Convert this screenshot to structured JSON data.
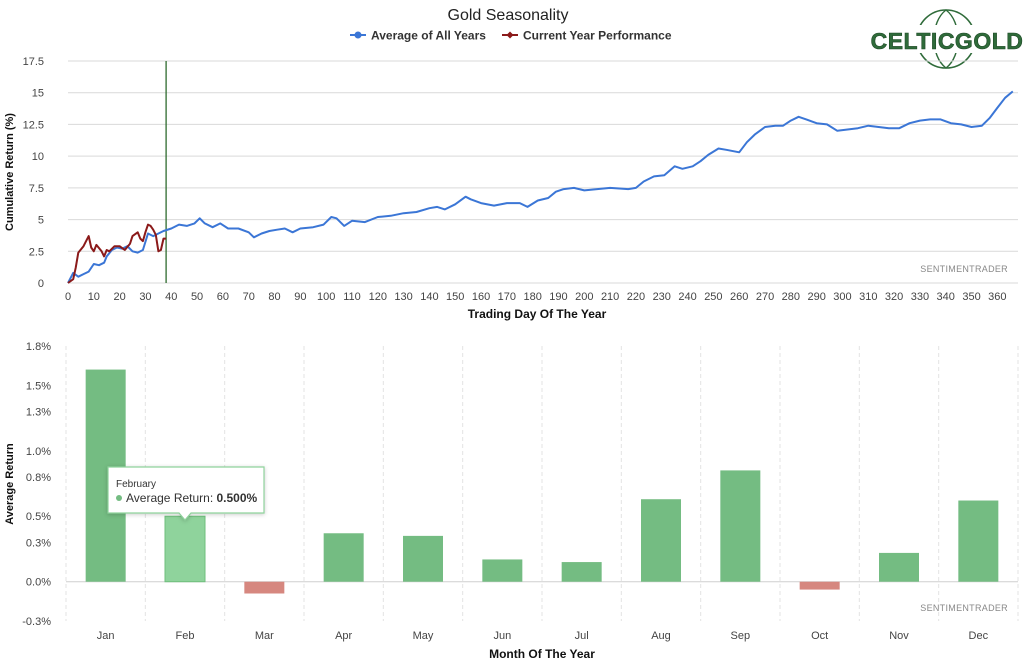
{
  "colors": {
    "average_line": "#3b76d6",
    "current_line": "#8b1a1a",
    "bar_positive": "#74bc82",
    "bar_positive_highlight": "#8fd39c",
    "bar_negative": "#d6877f",
    "marker_line": "#2e6b2e",
    "grid": "#d9d9d9",
    "logo_green": "#2f6b3a"
  },
  "logo": {
    "text": "CELTICGOLD"
  },
  "chart_data": [
    {
      "type": "line",
      "title": "Gold Seasonality",
      "xlabel": "Trading Day Of The Year",
      "ylabel": "Cumulative Return (%)",
      "xlim": [
        0,
        368
      ],
      "ylim": [
        0,
        17.5
      ],
      "x_ticks": [
        0,
        10,
        20,
        30,
        40,
        50,
        60,
        70,
        80,
        90,
        100,
        110,
        120,
        130,
        140,
        150,
        160,
        170,
        180,
        190,
        200,
        210,
        220,
        230,
        240,
        250,
        260,
        270,
        280,
        290,
        300,
        310,
        320,
        330,
        340,
        350,
        360
      ],
      "y_ticks": [
        "0",
        "2.5",
        "5",
        "7.5",
        "10",
        "12.5",
        "15",
        "17.5"
      ],
      "y_tick_values": [
        0,
        2.5,
        5,
        7.5,
        10,
        12.5,
        15,
        17.5
      ],
      "current_day_marker": 38,
      "watermark": "SENTIMENTRADER",
      "series": [
        {
          "name": "Average of All Years",
          "color": "#3b76d6",
          "points": [
            [
              0,
              0
            ],
            [
              2,
              0.8
            ],
            [
              4,
              0.5
            ],
            [
              6,
              0.7
            ],
            [
              8,
              0.9
            ],
            [
              10,
              1.5
            ],
            [
              12,
              1.4
            ],
            [
              14,
              1.6
            ],
            [
              15,
              2.1
            ],
            [
              17,
              2.6
            ],
            [
              19,
              2.8
            ],
            [
              21,
              2.7
            ],
            [
              23,
              2.9
            ],
            [
              25,
              2.5
            ],
            [
              27,
              2.4
            ],
            [
              29,
              2.6
            ],
            [
              31,
              3.9
            ],
            [
              33,
              3.7
            ],
            [
              35,
              3.9
            ],
            [
              37,
              4.1
            ],
            [
              40,
              4.3
            ],
            [
              43,
              4.6
            ],
            [
              46,
              4.5
            ],
            [
              49,
              4.7
            ],
            [
              51,
              5.1
            ],
            [
              53,
              4.7
            ],
            [
              56,
              4.4
            ],
            [
              59,
              4.7
            ],
            [
              62,
              4.3
            ],
            [
              66,
              4.3
            ],
            [
              70,
              4.0
            ],
            [
              72,
              3.6
            ],
            [
              75,
              3.9
            ],
            [
              78,
              4.1
            ],
            [
              81,
              4.2
            ],
            [
              84,
              4.3
            ],
            [
              87,
              4.0
            ],
            [
              90,
              4.3
            ],
            [
              95,
              4.4
            ],
            [
              99,
              4.6
            ],
            [
              102,
              5.2
            ],
            [
              104,
              5.1
            ],
            [
              107,
              4.5
            ],
            [
              110,
              4.9
            ],
            [
              115,
              4.8
            ],
            [
              120,
              5.2
            ],
            [
              125,
              5.3
            ],
            [
              130,
              5.5
            ],
            [
              135,
              5.6
            ],
            [
              140,
              5.9
            ],
            [
              143,
              6.0
            ],
            [
              146,
              5.8
            ],
            [
              150,
              6.2
            ],
            [
              154,
              6.8
            ],
            [
              156,
              6.6
            ],
            [
              160,
              6.3
            ],
            [
              165,
              6.1
            ],
            [
              170,
              6.3
            ],
            [
              175,
              6.3
            ],
            [
              178,
              6.0
            ],
            [
              182,
              6.5
            ],
            [
              186,
              6.7
            ],
            [
              189,
              7.2
            ],
            [
              192,
              7.4
            ],
            [
              196,
              7.5
            ],
            [
              200,
              7.3
            ],
            [
              205,
              7.4
            ],
            [
              210,
              7.5
            ],
            [
              217,
              7.4
            ],
            [
              220,
              7.5
            ],
            [
              223,
              8.0
            ],
            [
              227,
              8.4
            ],
            [
              231,
              8.5
            ],
            [
              235,
              9.2
            ],
            [
              238,
              9.0
            ],
            [
              242,
              9.2
            ],
            [
              245,
              9.6
            ],
            [
              248,
              10.1
            ],
            [
              252,
              10.6
            ],
            [
              255,
              10.5
            ],
            [
              260,
              10.3
            ],
            [
              263,
              11.1
            ],
            [
              266,
              11.7
            ],
            [
              270,
              12.3
            ],
            [
              274,
              12.4
            ],
            [
              277,
              12.4
            ],
            [
              280,
              12.8
            ],
            [
              283,
              13.1
            ],
            [
              286,
              12.9
            ],
            [
              290,
              12.6
            ],
            [
              294,
              12.5
            ],
            [
              298,
              12.0
            ],
            [
              302,
              12.1
            ],
            [
              306,
              12.2
            ],
            [
              310,
              12.4
            ],
            [
              314,
              12.3
            ],
            [
              318,
              12.2
            ],
            [
              322,
              12.2
            ],
            [
              326,
              12.6
            ],
            [
              330,
              12.8
            ],
            [
              334,
              12.9
            ],
            [
              338,
              12.9
            ],
            [
              342,
              12.6
            ],
            [
              346,
              12.5
            ],
            [
              350,
              12.3
            ],
            [
              354,
              12.4
            ],
            [
              357,
              13.0
            ],
            [
              360,
              13.8
            ],
            [
              363,
              14.6
            ],
            [
              366,
              15.1
            ]
          ]
        },
        {
          "name": "Current Year Performance",
          "color": "#8b1a1a",
          "points": [
            [
              0,
              0
            ],
            [
              2,
              0.3
            ],
            [
              3,
              1.2
            ],
            [
              4,
              2.4
            ],
            [
              6,
              2.9
            ],
            [
              7,
              3.3
            ],
            [
              8,
              3.7
            ],
            [
              9,
              2.8
            ],
            [
              10,
              2.5
            ],
            [
              11,
              3.0
            ],
            [
              13,
              2.5
            ],
            [
              14,
              2.1
            ],
            [
              15,
              2.6
            ],
            [
              16,
              2.5
            ],
            [
              18,
              2.9
            ],
            [
              20,
              2.9
            ],
            [
              22,
              2.6
            ],
            [
              24,
              3.1
            ],
            [
              25,
              3.7
            ],
            [
              27,
              4.0
            ],
            [
              28,
              3.5
            ],
            [
              29,
              3.3
            ],
            [
              30,
              4.0
            ],
            [
              31,
              4.6
            ],
            [
              32,
              4.5
            ],
            [
              33,
              4.2
            ],
            [
              34,
              3.8
            ],
            [
              35,
              2.5
            ],
            [
              36,
              2.6
            ],
            [
              37,
              3.5
            ],
            [
              38,
              3.5
            ]
          ]
        }
      ]
    },
    {
      "type": "bar",
      "xlabel": "Month Of The Year",
      "ylabel": "Average Return",
      "ylim": [
        -0.3,
        1.8
      ],
      "y_ticks": [
        "-0.3%",
        "0.0%",
        "0.3%",
        "0.5%",
        "0.8%",
        "1.0%",
        "1.3%",
        "1.5%",
        "1.8%"
      ],
      "y_tick_values": [
        -0.3,
        0.0,
        0.3,
        0.5,
        0.8,
        1.0,
        1.3,
        1.5,
        1.8
      ],
      "categories": [
        "Jan",
        "Feb",
        "Mar",
        "Apr",
        "May",
        "Jun",
        "Jul",
        "Aug",
        "Sep",
        "Oct",
        "Nov",
        "Dec"
      ],
      "values": [
        1.62,
        0.5,
        -0.09,
        0.37,
        0.35,
        0.17,
        0.15,
        0.63,
        0.85,
        -0.06,
        0.22,
        0.62
      ],
      "watermark": "SENTIMENTRADER",
      "tooltip": {
        "category_index": 1,
        "title": "February",
        "label": "Average Return:",
        "value": "0.500%"
      }
    }
  ]
}
